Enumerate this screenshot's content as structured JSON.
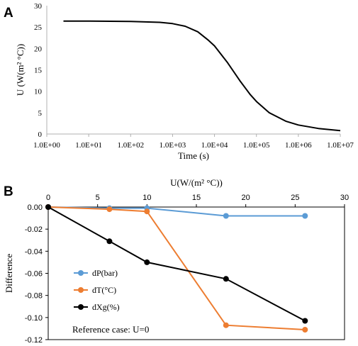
{
  "chart_data": [
    {
      "panel": "A",
      "type": "line",
      "xlabel": "Time (s)",
      "ylabel": "U (W(m² °C))",
      "xscale": "log",
      "xlim": [
        1,
        10000000
      ],
      "ylim": [
        0,
        30
      ],
      "x_ticks": [
        "1.0E+00",
        "1.0E+01",
        "1.0E+02",
        "1.0E+03",
        "1.0E+04",
        "1.0E+05",
        "1.0E+06",
        "1.0E+07"
      ],
      "y_ticks": [
        "0",
        "5",
        "10",
        "15",
        "20",
        "25",
        "30"
      ],
      "grid": false,
      "series": [
        {
          "color": "#000000",
          "x": [
            2.5,
            10,
            100,
            500,
            1000,
            2000,
            4000,
            7000,
            10000,
            20000,
            40000,
            70000,
            100000,
            200000,
            500000,
            1000000,
            3000000,
            10000000
          ],
          "y": [
            26.4,
            26.4,
            26.3,
            26.1,
            25.8,
            25.2,
            23.9,
            22.0,
            20.6,
            16.8,
            12.5,
            9.3,
            7.6,
            5.0,
            3.0,
            2.1,
            1.3,
            0.8
          ]
        }
      ]
    },
    {
      "panel": "B",
      "type": "line",
      "xlabel": "U(W/(m² °C))",
      "ylabel": "Difference",
      "xlim": [
        0,
        30
      ],
      "ylim": [
        -0.12,
        0
      ],
      "x_ticks": [
        "0",
        "5",
        "10",
        "15",
        "20",
        "25",
        "30"
      ],
      "y_ticks": [
        "0.00",
        "-0.02",
        "-0.04",
        "-0.06",
        "-0.08",
        "-0.10",
        "-0.12"
      ],
      "grid": false,
      "legend_position": "left",
      "annotation": "Reference case: U=0",
      "series": [
        {
          "name": "dP(bar)",
          "color": "#5B9BD5",
          "x": [
            0,
            6.2,
            10,
            18,
            26
          ],
          "y": [
            0,
            -0.001,
            -0.001,
            -0.008,
            -0.008
          ]
        },
        {
          "name": "dT(°C)",
          "color": "#ED7D31",
          "x": [
            0,
            6.2,
            10,
            18,
            26
          ],
          "y": [
            0,
            -0.002,
            -0.004,
            -0.107,
            -0.111
          ]
        },
        {
          "name": "dXg(%)",
          "color": "#000000",
          "x": [
            0,
            6.2,
            10,
            18,
            26
          ],
          "y": [
            0,
            -0.031,
            -0.05,
            -0.065,
            -0.103
          ]
        }
      ]
    }
  ],
  "panel_labels": {
    "a": "A",
    "b": "B"
  }
}
